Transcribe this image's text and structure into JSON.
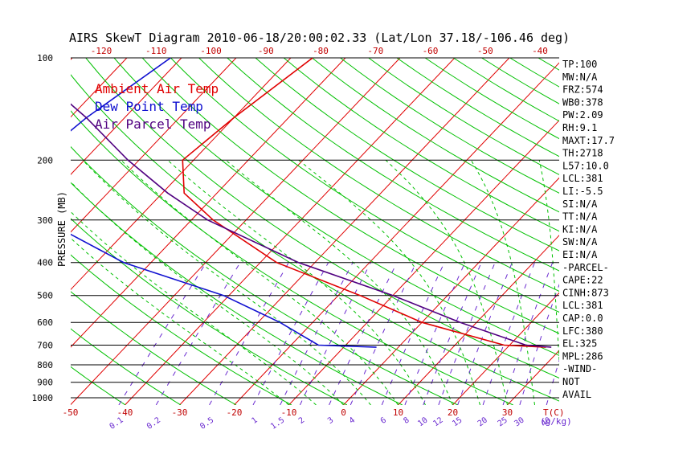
{
  "chart_data": {
    "type": "line",
    "title": "AIRS SkewT Diagram 2010-06-18/20:00:02.33 (Lat/Lon 37.18/-106.46 deg)",
    "ylabel": "PRESSURE (MB)",
    "xlabel_bottom": "T(C)",
    "mixing_ratio_unit": "(g/kg)",
    "y_scale": "log-pressure (inverted)",
    "ylim": [
      1000,
      100
    ],
    "xlim_bottom": [
      -50,
      40
    ],
    "xlim_top": [
      -120,
      -40
    ],
    "pressure_ticks": [
      100,
      200,
      300,
      400,
      500,
      600,
      700,
      800,
      900,
      1000
    ],
    "bottom_temp_ticks": [
      -50,
      -40,
      -30,
      -20,
      -10,
      0,
      10,
      20,
      30
    ],
    "top_temp_ticks": [
      -120,
      -110,
      -100,
      -90,
      -80,
      -70,
      -60,
      -50,
      -40
    ],
    "mixing_ratio_labels": [
      "0.1",
      "0.2",
      "0.5",
      "1",
      "1.5",
      "2",
      "3",
      "4",
      "6",
      "8",
      "10",
      "12",
      "15",
      "20",
      "25",
      "30",
      "40"
    ],
    "legend": [
      "Ambient Air Temp",
      "Dew Point Temp",
      "Air Parcel Temp"
    ],
    "grid": true,
    "series": [
      {
        "name": "Ambient Air Temp",
        "color": "#e00000",
        "points": [
          [
            100,
            -66
          ],
          [
            150,
            -70
          ],
          [
            200,
            -72
          ],
          [
            250,
            -66
          ],
          [
            300,
            -56
          ],
          [
            400,
            -37
          ],
          [
            500,
            -16
          ],
          [
            600,
            0
          ],
          [
            700,
            19
          ],
          [
            710,
            27
          ]
        ]
      },
      {
        "name": "Dew Point Temp",
        "color": "#1010d0",
        "points": [
          [
            100,
            -92
          ],
          [
            150,
            -97
          ],
          [
            200,
            -99
          ],
          [
            250,
            -95
          ],
          [
            300,
            -87
          ],
          [
            400,
            -65
          ],
          [
            500,
            -41
          ],
          [
            600,
            -26
          ],
          [
            700,
            -15
          ],
          [
            710,
            -4
          ]
        ]
      },
      {
        "name": "Air Parcel Temp",
        "color": "#500080",
        "points": [
          [
            100,
            -120
          ],
          [
            150,
            -97
          ],
          [
            200,
            -82
          ],
          [
            250,
            -69
          ],
          [
            300,
            -57
          ],
          [
            400,
            -33
          ],
          [
            500,
            -10
          ],
          [
            600,
            7
          ],
          [
            700,
            23
          ],
          [
            710,
            28
          ]
        ]
      }
    ]
  },
  "indices": {
    "items": [
      "TP:100",
      "MW:N/A",
      "FRZ:574",
      "WB0:378",
      "PW:2.09",
      "RH:9.1",
      "MAXT:17.7",
      "TH:2718",
      "L57:10.0",
      "LCL:381",
      "LI:-5.5",
      "SI:N/A",
      "TT:N/A",
      "KI:N/A",
      "SW:N/A",
      "EI:N/A",
      "-PARCEL-",
      "CAPE:22",
      "CINH:873",
      "LCL:381",
      "CAP:0.0",
      "LFC:380",
      "EL:325",
      "MPL:286",
      "-WIND-",
      "NOT",
      "AVAIL"
    ]
  },
  "colors": {
    "isotherm": "#e00000",
    "dry_adiabat": "#00c000",
    "mixing_ratio": "#6a2ad0",
    "axis_labels": "#c00000",
    "isobar": "#000000"
  }
}
